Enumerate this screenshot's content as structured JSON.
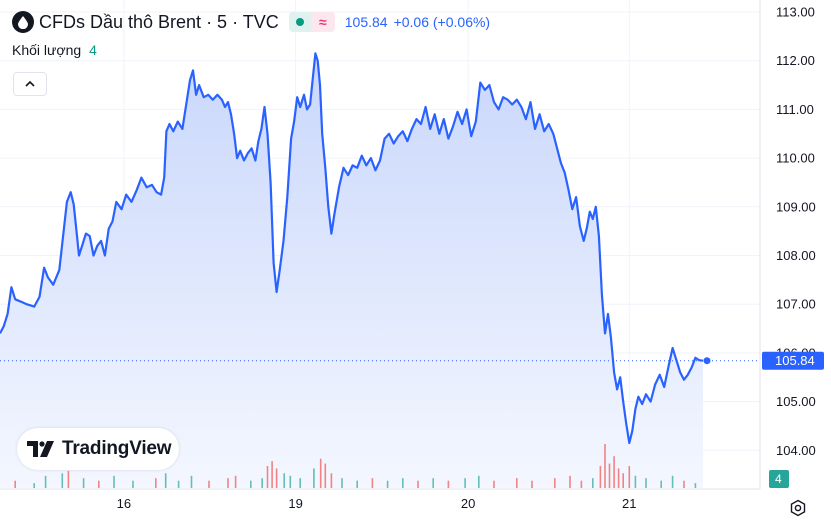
{
  "header": {
    "symbol_title": "CFDs Dầu thô Brent · 5 · TVC",
    "delay_glyph": "≈",
    "last_price": "105.84",
    "change": "+0.06 (+0.06%)",
    "icon": "droplet-icon"
  },
  "volume": {
    "label": "Khối lượng",
    "value": "4"
  },
  "brand": {
    "name": "TradingView",
    "icon": "tradingview-logo-icon"
  },
  "colors": {
    "line": "#2962ff",
    "area_top": "#c9d7fb",
    "area_bottom": "#f4f7ff",
    "volume_up": "#26a69a",
    "volume_down": "#ef5350",
    "price_label_bg": "#2962ff",
    "volume_label_bg": "#26a69a"
  },
  "chart_data": {
    "type": "area",
    "title": "CFDs Dầu thô Brent · 5 · TVC",
    "xlabel": "",
    "ylabel": "",
    "ylim": [
      103.75,
      113.0
    ],
    "y_ticks": [
      "113.00",
      "112.00",
      "111.00",
      "110.00",
      "109.00",
      "108.00",
      "107.00",
      "106.00",
      "105.00",
      "104.00"
    ],
    "x_ticks": [
      {
        "label": "16",
        "t": 0.163
      },
      {
        "label": "19",
        "t": 0.389
      },
      {
        "label": "20",
        "t": 0.616
      },
      {
        "label": "21",
        "t": 0.828
      }
    ],
    "last_price": 105.84,
    "last_price_label": "105.84",
    "volume_label": "4",
    "grid": true,
    "series": [
      {
        "points": [
          [
            0.0,
            106.4
          ],
          [
            0.005,
            106.55
          ],
          [
            0.01,
            106.8
          ],
          [
            0.015,
            107.35
          ],
          [
            0.02,
            107.1
          ],
          [
            0.028,
            107.05
          ],
          [
            0.035,
            107.0
          ],
          [
            0.045,
            106.95
          ],
          [
            0.052,
            107.15
          ],
          [
            0.058,
            107.75
          ],
          [
            0.063,
            107.55
          ],
          [
            0.07,
            107.4
          ],
          [
            0.078,
            107.7
          ],
          [
            0.083,
            108.4
          ],
          [
            0.088,
            109.1
          ],
          [
            0.093,
            109.3
          ],
          [
            0.097,
            109.05
          ],
          [
            0.1,
            108.6
          ],
          [
            0.104,
            108.0
          ],
          [
            0.108,
            108.2
          ],
          [
            0.113,
            108.45
          ],
          [
            0.118,
            108.4
          ],
          [
            0.123,
            108.0
          ],
          [
            0.128,
            108.2
          ],
          [
            0.133,
            108.3
          ],
          [
            0.138,
            108.0
          ],
          [
            0.143,
            108.55
          ],
          [
            0.148,
            108.7
          ],
          [
            0.153,
            109.1
          ],
          [
            0.16,
            108.95
          ],
          [
            0.166,
            109.25
          ],
          [
            0.173,
            109.1
          ],
          [
            0.18,
            109.35
          ],
          [
            0.186,
            109.6
          ],
          [
            0.193,
            109.4
          ],
          [
            0.2,
            109.45
          ],
          [
            0.206,
            109.3
          ],
          [
            0.212,
            109.25
          ],
          [
            0.216,
            109.6
          ],
          [
            0.219,
            110.55
          ],
          [
            0.223,
            110.7
          ],
          [
            0.228,
            110.55
          ],
          [
            0.234,
            110.75
          ],
          [
            0.24,
            110.6
          ],
          [
            0.245,
            111.1
          ],
          [
            0.25,
            111.6
          ],
          [
            0.254,
            111.8
          ],
          [
            0.258,
            111.3
          ],
          [
            0.262,
            111.5
          ],
          [
            0.268,
            111.25
          ],
          [
            0.274,
            111.3
          ],
          [
            0.28,
            111.2
          ],
          [
            0.286,
            111.3
          ],
          [
            0.292,
            111.2
          ],
          [
            0.296,
            111.05
          ],
          [
            0.3,
            111.15
          ],
          [
            0.304,
            110.9
          ],
          [
            0.308,
            110.5
          ],
          [
            0.312,
            110.0
          ],
          [
            0.316,
            110.15
          ],
          [
            0.321,
            109.95
          ],
          [
            0.326,
            110.1
          ],
          [
            0.331,
            110.2
          ],
          [
            0.336,
            109.95
          ],
          [
            0.34,
            110.35
          ],
          [
            0.344,
            110.6
          ],
          [
            0.348,
            111.05
          ],
          [
            0.352,
            110.5
          ],
          [
            0.356,
            109.5
          ],
          [
            0.36,
            107.85
          ],
          [
            0.364,
            107.25
          ],
          [
            0.368,
            107.7
          ],
          [
            0.373,
            108.3
          ],
          [
            0.378,
            109.2
          ],
          [
            0.383,
            110.4
          ],
          [
            0.387,
            110.75
          ],
          [
            0.391,
            111.25
          ],
          [
            0.395,
            111.05
          ],
          [
            0.4,
            111.3
          ],
          [
            0.404,
            111.0
          ],
          [
            0.408,
            111.1
          ],
          [
            0.412,
            111.7
          ],
          [
            0.415,
            112.15
          ],
          [
            0.418,
            112.0
          ],
          [
            0.421,
            111.5
          ],
          [
            0.424,
            110.5
          ],
          [
            0.428,
            109.8
          ],
          [
            0.432,
            109.0
          ],
          [
            0.436,
            108.45
          ],
          [
            0.44,
            108.85
          ],
          [
            0.446,
            109.4
          ],
          [
            0.452,
            109.8
          ],
          [
            0.458,
            109.65
          ],
          [
            0.464,
            109.85
          ],
          [
            0.47,
            109.8
          ],
          [
            0.476,
            110.05
          ],
          [
            0.482,
            109.85
          ],
          [
            0.488,
            110.0
          ],
          [
            0.494,
            109.75
          ],
          [
            0.5,
            109.95
          ],
          [
            0.506,
            110.4
          ],
          [
            0.512,
            110.5
          ],
          [
            0.518,
            110.3
          ],
          [
            0.524,
            110.45
          ],
          [
            0.53,
            110.55
          ],
          [
            0.536,
            110.35
          ],
          [
            0.542,
            110.6
          ],
          [
            0.548,
            110.8
          ],
          [
            0.554,
            110.7
          ],
          [
            0.56,
            111.05
          ],
          [
            0.566,
            110.6
          ],
          [
            0.572,
            110.9
          ],
          [
            0.578,
            110.5
          ],
          [
            0.584,
            110.8
          ],
          [
            0.59,
            110.4
          ],
          [
            0.596,
            110.65
          ],
          [
            0.602,
            110.95
          ],
          [
            0.608,
            110.7
          ],
          [
            0.614,
            111.0
          ],
          [
            0.62,
            110.45
          ],
          [
            0.626,
            110.75
          ],
          [
            0.632,
            111.55
          ],
          [
            0.638,
            111.4
          ],
          [
            0.644,
            111.5
          ],
          [
            0.65,
            111.15
          ],
          [
            0.656,
            111.0
          ],
          [
            0.662,
            111.25
          ],
          [
            0.668,
            111.2
          ],
          [
            0.674,
            111.1
          ],
          [
            0.68,
            111.2
          ],
          [
            0.686,
            111.05
          ],
          [
            0.692,
            110.8
          ],
          [
            0.698,
            111.15
          ],
          [
            0.704,
            110.6
          ],
          [
            0.71,
            110.9
          ],
          [
            0.716,
            110.55
          ],
          [
            0.722,
            110.7
          ],
          [
            0.728,
            110.5
          ],
          [
            0.733,
            110.2
          ],
          [
            0.738,
            109.9
          ],
          [
            0.743,
            109.7
          ],
          [
            0.748,
            109.35
          ],
          [
            0.753,
            108.95
          ],
          [
            0.758,
            109.2
          ],
          [
            0.763,
            108.6
          ],
          [
            0.768,
            108.3
          ],
          [
            0.772,
            108.55
          ],
          [
            0.776,
            108.9
          ],
          [
            0.78,
            108.75
          ],
          [
            0.784,
            109.0
          ],
          [
            0.788,
            108.4
          ],
          [
            0.792,
            107.2
          ],
          [
            0.796,
            106.4
          ],
          [
            0.8,
            106.8
          ],
          [
            0.804,
            106.3
          ],
          [
            0.808,
            105.6
          ],
          [
            0.812,
            105.25
          ],
          [
            0.816,
            105.5
          ],
          [
            0.82,
            105.0
          ],
          [
            0.824,
            104.55
          ],
          [
            0.828,
            104.15
          ],
          [
            0.832,
            104.4
          ],
          [
            0.836,
            104.85
          ],
          [
            0.84,
            105.1
          ],
          [
            0.845,
            104.95
          ],
          [
            0.85,
            105.15
          ],
          [
            0.856,
            105.0
          ],
          [
            0.862,
            105.35
          ],
          [
            0.868,
            105.55
          ],
          [
            0.874,
            105.3
          ],
          [
            0.88,
            105.75
          ],
          [
            0.885,
            106.1
          ],
          [
            0.89,
            105.85
          ],
          [
            0.895,
            105.6
          ],
          [
            0.9,
            105.45
          ],
          [
            0.905,
            105.55
          ],
          [
            0.91,
            105.7
          ],
          [
            0.915,
            105.9
          ],
          [
            0.92,
            105.85
          ],
          [
            0.925,
            105.84
          ]
        ]
      }
    ],
    "volume": [
      {
        "t": 0.02,
        "v": 3,
        "up": false
      },
      {
        "t": 0.045,
        "v": 2,
        "up": true
      },
      {
        "t": 0.06,
        "v": 5,
        "up": true
      },
      {
        "t": 0.082,
        "v": 6,
        "up": true
      },
      {
        "t": 0.09,
        "v": 7,
        "up": false
      },
      {
        "t": 0.11,
        "v": 4,
        "up": true
      },
      {
        "t": 0.13,
        "v": 3,
        "up": false
      },
      {
        "t": 0.15,
        "v": 5,
        "up": true
      },
      {
        "t": 0.175,
        "v": 3,
        "up": true
      },
      {
        "t": 0.205,
        "v": 4,
        "up": false
      },
      {
        "t": 0.218,
        "v": 6,
        "up": true
      },
      {
        "t": 0.235,
        "v": 3,
        "up": true
      },
      {
        "t": 0.252,
        "v": 5,
        "up": true
      },
      {
        "t": 0.275,
        "v": 3,
        "up": false
      },
      {
        "t": 0.3,
        "v": 4,
        "up": false
      },
      {
        "t": 0.31,
        "v": 5,
        "up": false
      },
      {
        "t": 0.33,
        "v": 3,
        "up": true
      },
      {
        "t": 0.345,
        "v": 4,
        "up": true
      },
      {
        "t": 0.352,
        "v": 9,
        "up": false
      },
      {
        "t": 0.358,
        "v": 11,
        "up": false
      },
      {
        "t": 0.364,
        "v": 8,
        "up": false
      },
      {
        "t": 0.374,
        "v": 6,
        "up": true
      },
      {
        "t": 0.382,
        "v": 5,
        "up": true
      },
      {
        "t": 0.395,
        "v": 4,
        "up": true
      },
      {
        "t": 0.413,
        "v": 8,
        "up": true
      },
      {
        "t": 0.422,
        "v": 12,
        "up": false
      },
      {
        "t": 0.428,
        "v": 10,
        "up": false
      },
      {
        "t": 0.436,
        "v": 6,
        "up": false
      },
      {
        "t": 0.45,
        "v": 4,
        "up": true
      },
      {
        "t": 0.47,
        "v": 3,
        "up": true
      },
      {
        "t": 0.49,
        "v": 4,
        "up": false
      },
      {
        "t": 0.51,
        "v": 3,
        "up": true
      },
      {
        "t": 0.53,
        "v": 4,
        "up": true
      },
      {
        "t": 0.55,
        "v": 3,
        "up": false
      },
      {
        "t": 0.57,
        "v": 4,
        "up": true
      },
      {
        "t": 0.59,
        "v": 3,
        "up": false
      },
      {
        "t": 0.612,
        "v": 4,
        "up": true
      },
      {
        "t": 0.63,
        "v": 5,
        "up": true
      },
      {
        "t": 0.65,
        "v": 3,
        "up": false
      },
      {
        "t": 0.68,
        "v": 4,
        "up": false
      },
      {
        "t": 0.7,
        "v": 3,
        "up": false
      },
      {
        "t": 0.73,
        "v": 4,
        "up": false
      },
      {
        "t": 0.75,
        "v": 5,
        "up": false
      },
      {
        "t": 0.765,
        "v": 3,
        "up": false
      },
      {
        "t": 0.78,
        "v": 4,
        "up": true
      },
      {
        "t": 0.79,
        "v": 9,
        "up": false
      },
      {
        "t": 0.796,
        "v": 18,
        "up": false
      },
      {
        "t": 0.802,
        "v": 10,
        "up": false
      },
      {
        "t": 0.808,
        "v": 13,
        "up": false
      },
      {
        "t": 0.814,
        "v": 8,
        "up": false
      },
      {
        "t": 0.82,
        "v": 6,
        "up": false
      },
      {
        "t": 0.828,
        "v": 9,
        "up": false
      },
      {
        "t": 0.836,
        "v": 5,
        "up": true
      },
      {
        "t": 0.85,
        "v": 4,
        "up": true
      },
      {
        "t": 0.87,
        "v": 3,
        "up": true
      },
      {
        "t": 0.885,
        "v": 5,
        "up": true
      },
      {
        "t": 0.9,
        "v": 3,
        "up": false
      },
      {
        "t": 0.915,
        "v": 2,
        "up": true
      }
    ]
  }
}
